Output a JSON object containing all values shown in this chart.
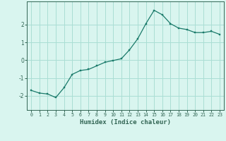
{
  "x": [
    0,
    1,
    2,
    3,
    4,
    5,
    6,
    7,
    8,
    9,
    10,
    11,
    12,
    13,
    14,
    15,
    16,
    17,
    18,
    19,
    20,
    21,
    22,
    23
  ],
  "y": [
    -1.7,
    -1.85,
    -1.9,
    -2.1,
    -1.55,
    -0.8,
    -0.58,
    -0.52,
    -0.32,
    -0.12,
    -0.02,
    0.08,
    0.58,
    1.2,
    2.05,
    2.8,
    2.55,
    2.05,
    1.8,
    1.72,
    1.55,
    1.55,
    1.62,
    1.45
  ],
  "line_color": "#1a7a6a",
  "marker_color": "#1a7a6a",
  "bg_color": "#d9f5ef",
  "grid_color": "#aaded4",
  "axis_color": "#336655",
  "xlabel": "Humidex (Indice chaleur)",
  "ylim": [
    -2.8,
    3.3
  ],
  "xlim": [
    -0.5,
    23.5
  ],
  "yticks": [
    -2,
    -1,
    0,
    1,
    2
  ],
  "xticks": [
    0,
    1,
    2,
    3,
    4,
    5,
    6,
    7,
    8,
    9,
    10,
    11,
    12,
    13,
    14,
    15,
    16,
    17,
    18,
    19,
    20,
    21,
    22,
    23
  ]
}
